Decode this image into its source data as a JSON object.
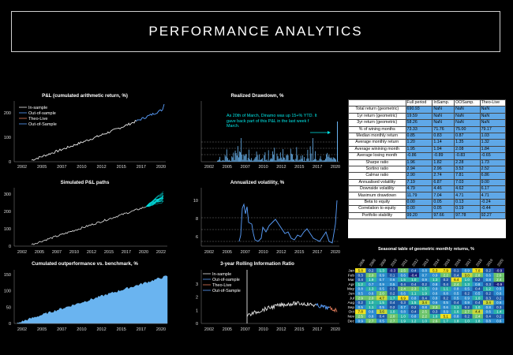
{
  "header": {
    "title": "PERFORMANCE ANALYTICS"
  },
  "colors": {
    "background": "#000000",
    "in_sample": "#e6e6e6",
    "out_of_sample": "#5aa0ff",
    "theo_live": "#e07b5a",
    "cyan": "#00e5e5",
    "fill_blue": "#6ab4f0"
  },
  "panels": {
    "pnl": {
      "title": "P&L (cumulated arithmetic return, %)",
      "legend": [
        "In-sample",
        "Out-of-sample",
        "Theo-Live",
        "Out-of-Sample"
      ],
      "xticks": [
        "2002",
        "2005",
        "2007",
        "2010",
        "2012",
        "2015",
        "2017",
        "2020"
      ],
      "yticks": [
        "0",
        "100",
        "200"
      ]
    },
    "drawdown": {
      "title": "Realized Drawdown, %",
      "annotation": "As 20th of March, Dinamo was up 15+% YTD. It gave back part of this P&L in the last week f March.",
      "xticks": [
        "2002",
        "2005",
        "2007",
        "2010",
        "2012",
        "2015",
        "2017",
        "2020"
      ]
    },
    "simulated": {
      "title": "Simulated P&L paths",
      "xticks": [
        "2002",
        "2005",
        "2007",
        "2010",
        "2012",
        "2015",
        "2017",
        "2020",
        "2022"
      ],
      "yticks": [
        "0",
        "100",
        "200",
        "300"
      ]
    },
    "volatility": {
      "title": "Annualized volatility, %",
      "xticks": [
        "2002",
        "2005",
        "2007",
        "2010",
        "2012",
        "2015",
        "2017",
        "2020"
      ],
      "yticks": [
        "6",
        "8",
        "10"
      ]
    },
    "outperf": {
      "title": "Cumulated outperformance vs. benchmark, %",
      "xticks": [
        "2002",
        "2005",
        "2007",
        "2010",
        "2012",
        "2015",
        "2017",
        "2020"
      ],
      "yticks": [
        "0",
        "50",
        "100",
        "150"
      ]
    },
    "ir": {
      "title": "3-year Rolling Information Ratio",
      "legend": [
        "In-sample",
        "Out-of-sample",
        "Theo-Live",
        "Out-of-Sample"
      ],
      "xticks": [
        "2002",
        "2005",
        "2007",
        "2010",
        "2012",
        "2015",
        "2017",
        "2020"
      ],
      "yticks": [
        "0",
        "1",
        "2",
        "3"
      ]
    }
  },
  "stats_table": {
    "columns": [
      "Full period",
      "InSamp.",
      "OOSamp.",
      "Theo-Live"
    ],
    "rows": [
      {
        "label": "Total return (geometric)",
        "values": [
          "690.93",
          "NaN",
          "NaN",
          "NaN"
        ]
      },
      {
        "label": "1yr return (geometric)",
        "values": [
          "19.59",
          "NaN",
          "NaN",
          "NaN"
        ]
      },
      {
        "label": "3yr return (geometric)",
        "values": [
          "58.26",
          "NaN",
          "NaN",
          "NaN"
        ]
      },
      {
        "label": "% of wining months",
        "values": [
          "73.33",
          "71.76",
          "75.00",
          "79.17"
        ]
      },
      {
        "label": "Median monthly return",
        "values": [
          "0.85",
          "0.83",
          "0.87",
          "1.03"
        ]
      },
      {
        "label": "Average monthly return",
        "values": [
          "1.20",
          "1.14",
          "1.35",
          "1.32"
        ]
      },
      {
        "label": "Average winining month",
        "values": [
          "1.95",
          "1.94",
          "2.08",
          "1.84"
        ]
      },
      {
        "label": "Average losing month",
        "values": [
          "-0.86",
          "-0.89",
          "-0.83",
          "-0.65"
        ]
      },
      {
        "label": "Sharpe ratio",
        "values": [
          "1.96",
          "1.82",
          "2.28",
          "1.73"
        ]
      },
      {
        "label": "Sortino ratio",
        "values": [
          "2.94",
          "2.96",
          "3.52",
          "2.52"
        ]
      },
      {
        "label": "Calmar ratio",
        "values": [
          "2.90",
          "2.74",
          "7.81",
          "6.86"
        ]
      },
      {
        "label": "Annualised volatility",
        "values": [
          "7.19",
          "6.87",
          "7.03",
          "9.00"
        ]
      },
      {
        "label": "Downside volatility",
        "values": [
          "4.79",
          "4.46",
          "4.62",
          "6.17"
        ]
      },
      {
        "label": "Maximum drawdown",
        "values": [
          "11.79",
          "7.04",
          "4.71",
          "4.71"
        ]
      },
      {
        "label": "Beta to equity",
        "values": [
          "0.00",
          "0.05",
          "0.13",
          "-0.24"
        ]
      },
      {
        "label": "Correlation to equity",
        "values": [
          "0.00",
          "0.05",
          "0.19",
          "-0.44"
        ]
      },
      {
        "label": "Portfolio stability",
        "values": [
          "99.20",
          "97.66",
          "97.78",
          "92.27"
        ]
      }
    ]
  },
  "seasonal": {
    "title": "Seasonal table of geometric monthly returns, %",
    "years": [
      "2006",
      "2008",
      "2009",
      "2010",
      "2011",
      "2012",
      "2013",
      "2014",
      "2015",
      "2016",
      "2017",
      "2018",
      "2019",
      "2020"
    ],
    "months": [
      "Jan",
      "Feb",
      "Mar",
      "Apr",
      "May",
      "Jun",
      "Jul",
      "Aug",
      "Sep",
      "Oct",
      "Nov",
      "Dec"
    ],
    "values": [
      [
        "5.8",
        "0.2",
        "1.3",
        "-0.3",
        "2.5",
        "0.4",
        "0.8",
        "5.3",
        "7.9",
        "0.1",
        "0.9",
        "7.0",
        "0.2",
        "-0.9"
      ],
      [
        "0.3",
        "2.0",
        "0.9",
        "0.1",
        "0.6",
        "-0.4",
        "0.7",
        "0.9",
        "2.2",
        "0.4",
        "3.0",
        "2.8",
        "0.6",
        "2.6"
      ],
      [
        "0.4",
        "1.9",
        "0.7",
        "0.6",
        "1.5",
        "1.0",
        "0.9",
        "1.3",
        "0.2",
        "6.4",
        "1.0",
        "0.2",
        "0.8",
        "2.4"
      ],
      [
        "1.2",
        "0.7",
        "0.9",
        "0.5",
        "0.4",
        "0.4",
        "0.2",
        "0.8",
        "0.4",
        "2.4",
        "1.3",
        "0.8",
        "0.3",
        "-0.9"
      ],
      [
        "0.8",
        "1.3",
        "0.5",
        "0.3",
        "2.4",
        "2.3",
        "1.5",
        "0.9",
        "1.1",
        "0.8",
        "0.5",
        "0.4",
        "1.2",
        "0.5"
      ],
      [
        "0.5",
        "0.6",
        "2.0",
        "0.2",
        "0.6",
        "1.1",
        "1.9",
        "0.6",
        "0.8",
        "0.5",
        "0.2",
        "0.5",
        "0.2",
        "0.6"
      ],
      [
        "2.9",
        "2.0",
        "4.7",
        "1.7",
        "6.9",
        "0.8",
        "0.4",
        "0.8",
        "0.2",
        "0.5",
        "0.9",
        "1.0",
        "0.3",
        "0.2"
      ],
      [
        "0.2",
        "1.0",
        "1.5",
        "0.4",
        "0.3",
        "1.5",
        "3.4",
        "0.6",
        "0.5",
        "0.4",
        "0.9",
        "0.4",
        "3.4",
        "0.6"
      ],
      [
        "0.5",
        "1.1",
        "0.5",
        "0.2",
        "0.7",
        "0.2",
        "0.8",
        "2.3",
        "0.6",
        "1.1",
        "0.2",
        "1.0",
        "0.8",
        "0.3"
      ],
      [
        "7.8",
        "0.6",
        "3.6",
        "1.0",
        "0.8",
        "0.4",
        "2.5",
        "0.3",
        "0.9",
        "1.6",
        "2.7",
        "4.4",
        "0.6",
        "1.4"
      ],
      [
        "2.5",
        "0.8",
        "0.4",
        "2.0",
        "1.0",
        "0.8",
        "2.2",
        "1.6",
        "5.1",
        "0.8",
        "0.2",
        "2.4",
        "0.4",
        "0.2"
      ],
      [
        "0.9",
        "2.7",
        "0.5",
        "2.7",
        "1.9",
        "1.2",
        "1.0",
        "2.6",
        "1.7",
        "1.8",
        "1.0",
        "1.8",
        "0.8",
        "0.6"
      ]
    ]
  }
}
